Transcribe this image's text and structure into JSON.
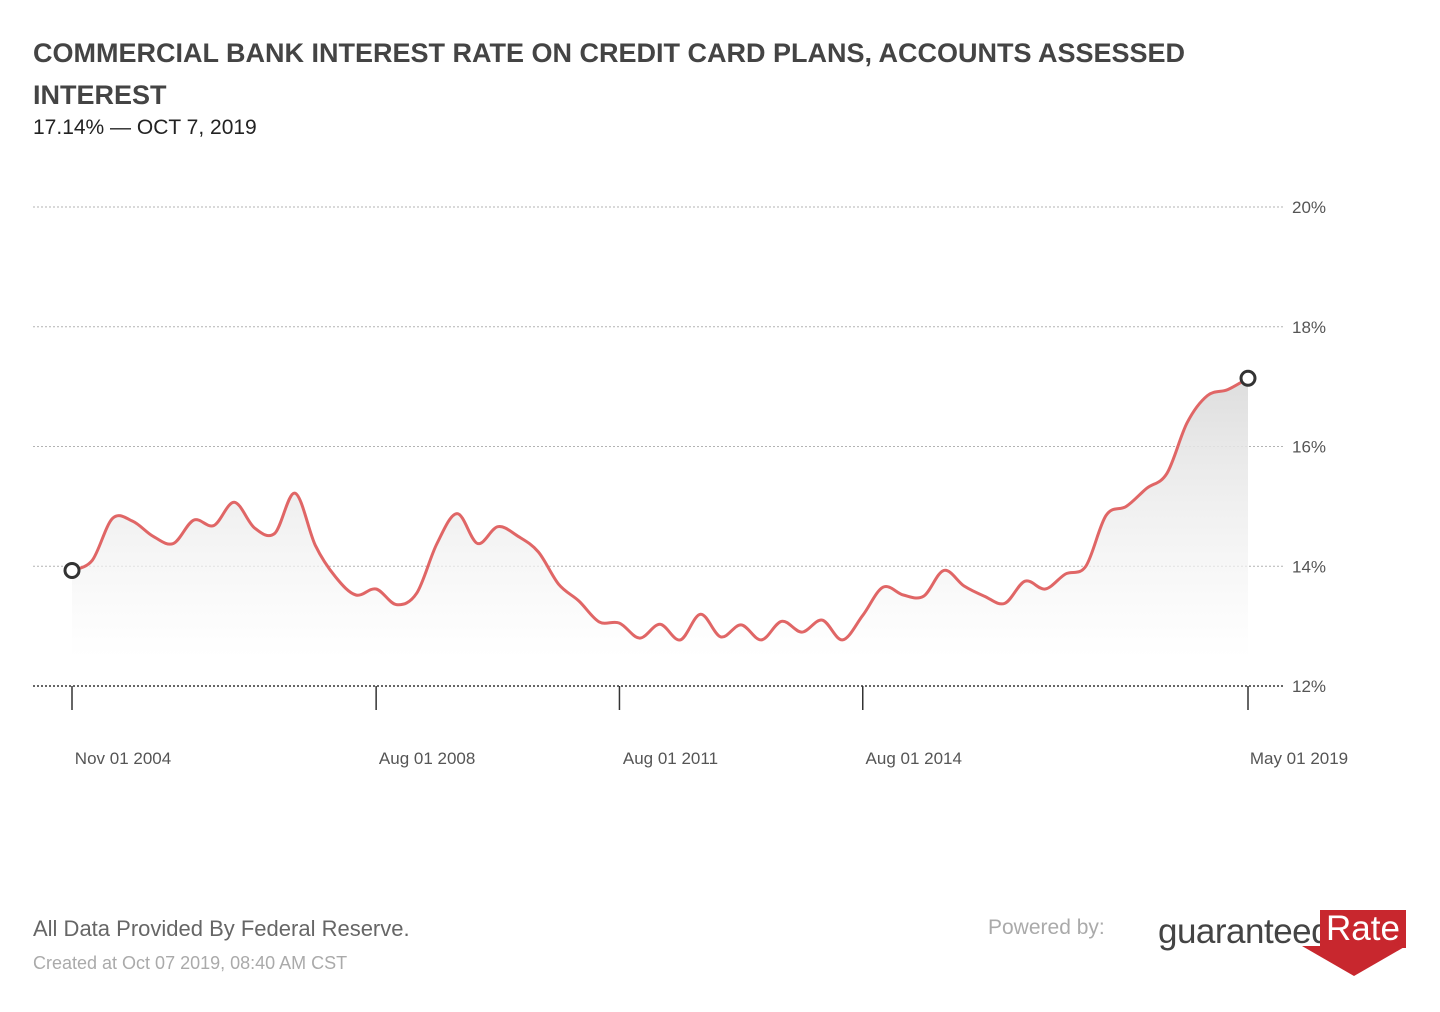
{
  "header": {
    "title": "COMMERCIAL BANK INTEREST RATE ON CREDIT CARD PLANS, ACCOUNTS ASSESSED INTEREST",
    "subtitle": "17.14% — OCT 7, 2019"
  },
  "footer": {
    "source": "All Data Provided By Federal Reserve.",
    "created": "Created at Oct 07 2019, 08:40 AM CST",
    "powered_by": "Powered by:",
    "logo_word": "guaranteed",
    "logo_rate": "Rate",
    "logo_reg": "®"
  },
  "colors": {
    "line": "#e06666",
    "fill_top": "#dcdcdc",
    "grid": "#b3b3b3",
    "marker": "#333333"
  },
  "chart_data": {
    "type": "area",
    "ylim": [
      12,
      20
    ],
    "y_ticks": [
      {
        "value": 12,
        "label": "12%"
      },
      {
        "value": 14,
        "label": "14%"
      },
      {
        "value": 16,
        "label": "16%"
      },
      {
        "value": 18,
        "label": "18%"
      },
      {
        "value": 20,
        "label": "20%"
      }
    ],
    "xlim": [
      2004.83,
      2019.33
    ],
    "x_ticks": [
      {
        "value": 2004.83,
        "label": "Nov 01 2004"
      },
      {
        "value": 2008.58,
        "label": "Aug 01 2008"
      },
      {
        "value": 2011.58,
        "label": "Aug 01 2011"
      },
      {
        "value": 2014.58,
        "label": "Aug 01 2014"
      },
      {
        "value": 2019.33,
        "label": "May 01 2019"
      }
    ],
    "x": [
      2004.83,
      2005.08,
      2005.33,
      2005.58,
      2005.83,
      2006.08,
      2006.33,
      2006.58,
      2006.83,
      2007.08,
      2007.33,
      2007.58,
      2007.83,
      2008.08,
      2008.33,
      2008.58,
      2008.83,
      2009.08,
      2009.33,
      2009.58,
      2009.83,
      2010.08,
      2010.33,
      2010.58,
      2010.83,
      2011.08,
      2011.33,
      2011.58,
      2011.83,
      2012.08,
      2012.33,
      2012.58,
      2012.83,
      2013.08,
      2013.33,
      2013.58,
      2013.83,
      2014.08,
      2014.33,
      2014.58,
      2014.83,
      2015.08,
      2015.33,
      2015.58,
      2015.83,
      2016.08,
      2016.33,
      2016.58,
      2016.83,
      2017.08,
      2017.33,
      2017.58,
      2017.83,
      2018.08,
      2018.33,
      2018.58,
      2018.83,
      2019.08,
      2019.33
    ],
    "values": [
      13.93,
      14.1,
      14.8,
      14.75,
      14.5,
      14.38,
      14.77,
      14.68,
      15.07,
      14.64,
      14.55,
      15.22,
      14.35,
      13.82,
      13.52,
      13.62,
      13.36,
      13.55,
      14.38,
      14.88,
      14.38,
      14.66,
      14.5,
      14.24,
      13.7,
      13.42,
      13.07,
      13.05,
      12.8,
      13.03,
      12.77,
      13.2,
      12.82,
      13.02,
      12.77,
      13.08,
      12.9,
      13.1,
      12.77,
      13.18,
      13.65,
      13.52,
      13.5,
      13.93,
      13.67,
      13.5,
      13.38,
      13.75,
      13.62,
      13.87,
      14.0,
      14.85,
      15.0,
      15.3,
      15.55,
      16.4,
      16.85,
      16.95,
      17.14
    ],
    "markers": [
      {
        "x": 2004.83,
        "value": 13.93
      },
      {
        "x": 2019.33,
        "value": 17.14
      }
    ]
  }
}
